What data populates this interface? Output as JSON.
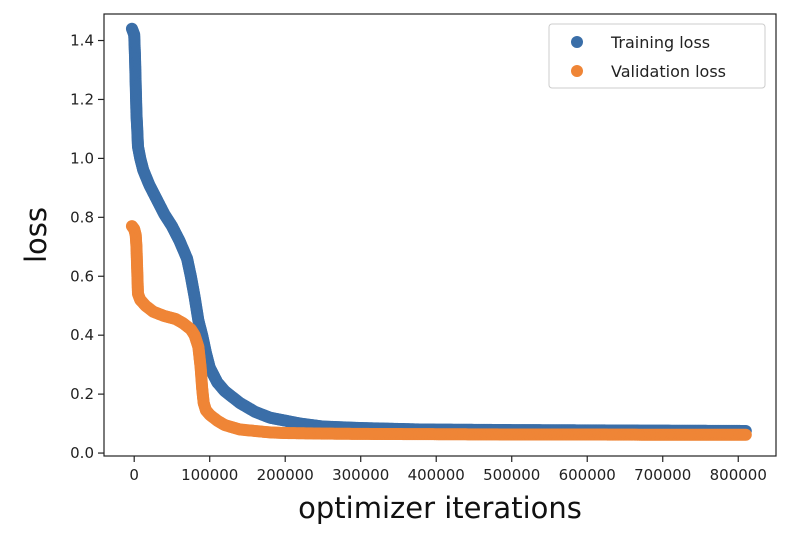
{
  "chart_data": {
    "type": "scatter",
    "title": "",
    "xlabel": "optimizer iterations",
    "ylabel": "loss",
    "xlim": [
      -40000,
      850000
    ],
    "ylim": [
      -0.01,
      1.49
    ],
    "xticks": [
      0,
      100000,
      200000,
      300000,
      400000,
      500000,
      600000,
      700000,
      800000
    ],
    "xtick_labels": [
      "0",
      "100000",
      "200000",
      "300000",
      "400000",
      "500000",
      "600000",
      "700000",
      "800000"
    ],
    "yticks": [
      0.0,
      0.2,
      0.4,
      0.6,
      0.8,
      1.0,
      1.2,
      1.4
    ],
    "ytick_labels": [
      "0.0",
      "0.2",
      "0.4",
      "0.6",
      "0.8",
      "1.0",
      "1.2",
      "1.4"
    ],
    "grid": false,
    "legend_position": "top-right",
    "series": [
      {
        "name": "Training loss",
        "color": "#3a6ea8",
        "points": [
          [
            -3000,
            1.44
          ],
          [
            0,
            1.42
          ],
          [
            1000,
            1.35
          ],
          [
            2000,
            1.25
          ],
          [
            3000,
            1.15
          ],
          [
            4000,
            1.1
          ],
          [
            5000,
            1.04
          ],
          [
            8000,
            1.0
          ],
          [
            12000,
            0.96
          ],
          [
            20000,
            0.91
          ],
          [
            30000,
            0.86
          ],
          [
            40000,
            0.81
          ],
          [
            50000,
            0.77
          ],
          [
            60000,
            0.72
          ],
          [
            70000,
            0.66
          ],
          [
            75000,
            0.6
          ],
          [
            80000,
            0.53
          ],
          [
            85000,
            0.45
          ],
          [
            90000,
            0.4
          ],
          [
            95000,
            0.34
          ],
          [
            100000,
            0.29
          ],
          [
            110000,
            0.24
          ],
          [
            120000,
            0.21
          ],
          [
            140000,
            0.17
          ],
          [
            160000,
            0.14
          ],
          [
            180000,
            0.12
          ],
          [
            200000,
            0.11
          ],
          [
            220000,
            0.1
          ],
          [
            250000,
            0.09
          ],
          [
            300000,
            0.085
          ],
          [
            380000,
            0.08
          ],
          [
            500000,
            0.078
          ],
          [
            600000,
            0.077
          ],
          [
            700000,
            0.076
          ],
          [
            810000,
            0.075
          ]
        ]
      },
      {
        "name": "Validation loss",
        "color": "#ef8536",
        "points": [
          [
            -3000,
            0.77
          ],
          [
            0,
            0.76
          ],
          [
            2000,
            0.74
          ],
          [
            3000,
            0.7
          ],
          [
            4000,
            0.62
          ],
          [
            5000,
            0.54
          ],
          [
            8000,
            0.52
          ],
          [
            15000,
            0.5
          ],
          [
            25000,
            0.48
          ],
          [
            40000,
            0.465
          ],
          [
            55000,
            0.455
          ],
          [
            65000,
            0.44
          ],
          [
            75000,
            0.42
          ],
          [
            80000,
            0.4
          ],
          [
            85000,
            0.36
          ],
          [
            88000,
            0.29
          ],
          [
            90000,
            0.22
          ],
          [
            92000,
            0.17
          ],
          [
            95000,
            0.145
          ],
          [
            100000,
            0.13
          ],
          [
            110000,
            0.11
          ],
          [
            120000,
            0.095
          ],
          [
            140000,
            0.08
          ],
          [
            160000,
            0.075
          ],
          [
            180000,
            0.07
          ],
          [
            200000,
            0.068
          ],
          [
            250000,
            0.066
          ],
          [
            300000,
            0.065
          ],
          [
            400000,
            0.064
          ],
          [
            500000,
            0.063
          ],
          [
            600000,
            0.063
          ],
          [
            700000,
            0.062
          ],
          [
            810000,
            0.062
          ]
        ]
      }
    ]
  }
}
